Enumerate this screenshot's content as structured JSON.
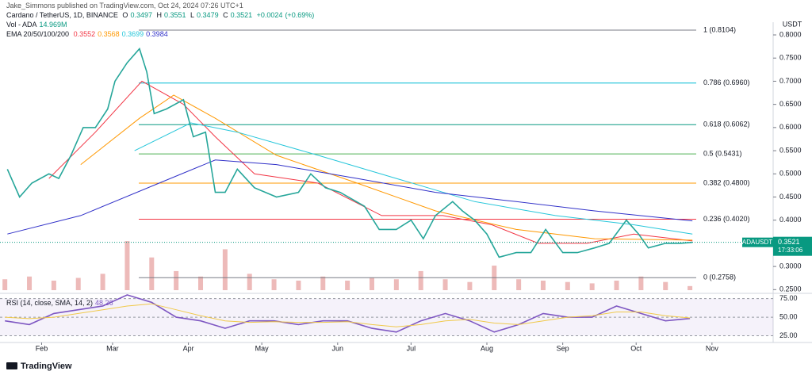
{
  "header": {
    "publisher": "Jake_Simmons published on TradingView.com, Oct 24, 2024 07:26 UTC+1",
    "symbol": "Cardano / TetherUS, 1D, BINANCE",
    "ohlc": [
      {
        "label": "O",
        "value": 0.3497
      },
      {
        "label": "H",
        "value": 0.3551
      },
      {
        "label": "L",
        "value": 0.3479
      },
      {
        "label": "C",
        "value": 0.3521
      }
    ],
    "change": {
      "value": 0.0024,
      "label": "+0.0024"
    },
    "change_pct": {
      "value": 0.69,
      "label": "(+0.69%)"
    },
    "volume": {
      "label": "Vol - ADA",
      "value": {
        "value": 14.969,
        "label": "14.969M"
      }
    },
    "ema": {
      "label": "EMA 20/50/100/200",
      "values": [
        0.3552,
        0.3568,
        0.3699,
        0.3984
      ]
    },
    "rsi": {
      "label": "RSI (14, close, SMA, 14, 2)",
      "value": 48.26
    },
    "currency": "USDT",
    "last_price": {
      "symbol": "ADAUSDT",
      "value": 0.3521,
      "countdown": "17:33:06"
    },
    "brand": "TradingView"
  },
  "chart_data": [
    {
      "type": "line",
      "xlim": [
        -17,
        299
      ],
      "ylim": [
        0.242,
        0.824
      ],
      "xticks": [
        {
          "value": 0,
          "label": "Feb"
        },
        {
          "value": 29,
          "label": "Mar"
        },
        {
          "value": 60,
          "label": "Apr"
        },
        {
          "value": 90,
          "label": "May"
        },
        {
          "value": 121,
          "label": "Jun"
        },
        {
          "value": 151,
          "label": "Jul"
        },
        {
          "value": 182,
          "label": "Aug"
        },
        {
          "value": 213,
          "label": "Sep"
        },
        {
          "value": 243,
          "label": "Oct"
        },
        {
          "value": 274,
          "label": "Nov"
        }
      ],
      "yticks": [
        {
          "value": 0.25,
          "label": "0.2500"
        },
        {
          "value": 0.3,
          "label": "0.3000"
        },
        {
          "value": 0.35,
          "label": "0.3500"
        },
        {
          "value": 0.4,
          "label": "0.4000"
        },
        {
          "value": 0.45,
          "label": "0.4500"
        },
        {
          "value": 0.5,
          "label": "0.5000"
        },
        {
          "value": 0.55,
          "label": "0.5500"
        },
        {
          "value": 0.6,
          "label": "0.6000"
        },
        {
          "value": 0.65,
          "label": "0.6500"
        },
        {
          "value": 0.7,
          "label": "0.7000"
        },
        {
          "value": 0.75,
          "label": "0.7500"
        },
        {
          "value": 0.8,
          "label": "0.8000"
        }
      ],
      "series": [
        {
          "color": "#26a69a",
          "x": [
            -14,
            -9,
            -4,
            3,
            7,
            12,
            17,
            22,
            27,
            30,
            35,
            40,
            43,
            46,
            51,
            58,
            62,
            67,
            71,
            75,
            80,
            87,
            96,
            105,
            110,
            116,
            122,
            132,
            138,
            145,
            151,
            156,
            161,
            168,
            172,
            177,
            182,
            187,
            194,
            200,
            206,
            213,
            219,
            226,
            232,
            239,
            244,
            248,
            255,
            261,
            266
          ],
          "values": [
            0.51,
            0.45,
            0.48,
            0.5,
            0.49,
            0.54,
            0.6,
            0.6,
            0.64,
            0.7,
            0.74,
            0.77,
            0.72,
            0.63,
            0.64,
            0.66,
            0.58,
            0.59,
            0.46,
            0.46,
            0.51,
            0.47,
            0.45,
            0.46,
            0.5,
            0.47,
            0.46,
            0.43,
            0.38,
            0.38,
            0.4,
            0.36,
            0.41,
            0.44,
            0.42,
            0.4,
            0.37,
            0.32,
            0.33,
            0.33,
            0.38,
            0.33,
            0.33,
            0.34,
            0.35,
            0.4,
            0.37,
            0.34,
            0.35,
            0.35,
            0.3521
          ]
        },
        {
          "color": "#f23645",
          "x": [
            3,
            22,
            41,
            58,
            71,
            87,
            113,
            139,
            164,
            184,
            203,
            223,
            242,
            266
          ],
          "values": [
            0.49,
            0.59,
            0.7,
            0.65,
            0.58,
            0.5,
            0.48,
            0.41,
            0.41,
            0.39,
            0.35,
            0.35,
            0.37,
            0.3552
          ]
        },
        {
          "color": "#ff9800",
          "x": [
            16,
            40,
            54,
            71,
            96,
            129,
            161,
            194,
            226,
            266
          ],
          "values": [
            0.52,
            0.62,
            0.67,
            0.62,
            0.54,
            0.48,
            0.42,
            0.38,
            0.36,
            0.3568
          ]
        },
        {
          "color": "#26c6da",
          "x": [
            38,
            61,
            80,
            113,
            145,
            177,
            210,
            242,
            266
          ],
          "values": [
            0.55,
            0.61,
            0.59,
            0.54,
            0.49,
            0.44,
            0.41,
            0.39,
            0.3699
          ]
        },
        {
          "color": "#3030c8",
          "x": [
            -14,
            16,
            48,
            71,
            96,
            129,
            161,
            194,
            226,
            266
          ],
          "values": [
            0.37,
            0.41,
            0.48,
            0.53,
            0.52,
            0.49,
            0.46,
            0.44,
            0.42,
            0.3984
          ]
        }
      ],
      "fib_levels": [
        {
          "label": "1 (0.8104)",
          "value": 0.8104,
          "color": "#787b86"
        },
        {
          "label": "0.786 (0.6960)",
          "value": 0.696,
          "color": "#00bcd4"
        },
        {
          "label": "0.618 (0.6062)",
          "value": 0.6062,
          "color": "#089981"
        },
        {
          "label": "0.5 (0.5431)",
          "value": 0.5431,
          "color": "#4caf50"
        },
        {
          "label": "0.382 (0.4800)",
          "value": 0.48,
          "color": "#ff9800"
        },
        {
          "label": "0.236 (0.4020)",
          "value": 0.402,
          "color": "#f23645"
        },
        {
          "label": "0 (0.2758)",
          "value": 0.2758,
          "color": "#787b86"
        }
      ]
    },
    {
      "type": "bar",
      "xlim": [
        -17,
        299
      ],
      "ylim": [
        0,
        250
      ],
      "color": "#e8a9a7",
      "x": [
        -15,
        -5,
        5,
        15,
        25,
        35,
        45,
        55,
        65,
        75,
        85,
        95,
        105,
        115,
        125,
        135,
        145,
        155,
        165,
        175,
        185,
        195,
        205,
        215,
        225,
        235,
        245,
        255,
        265
      ],
      "values": [
        40,
        50,
        35,
        45,
        60,
        180,
        120,
        70,
        50,
        150,
        60,
        40,
        35,
        50,
        35,
        45,
        40,
        70,
        40,
        30,
        90,
        40,
        35,
        30,
        25,
        35,
        50,
        30,
        14.969
      ]
    },
    {
      "type": "line",
      "xlim": [
        -17,
        299
      ],
      "ylim": [
        18,
        80
      ],
      "yticks": [
        {
          "value": 25,
          "label": "25.00"
        },
        {
          "value": 50,
          "label": "50.00"
        },
        {
          "value": 75,
          "label": "75.00"
        }
      ],
      "series": [
        {
          "color": "#7e57c2",
          "x": [
            -15,
            -5,
            5,
            15,
            25,
            35,
            45,
            55,
            65,
            75,
            85,
            95,
            105,
            115,
            125,
            135,
            145,
            155,
            165,
            175,
            185,
            195,
            205,
            215,
            225,
            235,
            245,
            255,
            265
          ],
          "values": [
            45,
            40,
            55,
            60,
            65,
            80,
            70,
            50,
            45,
            35,
            45,
            45,
            40,
            45,
            45,
            35,
            30,
            45,
            55,
            45,
            30,
            40,
            55,
            50,
            50,
            65,
            55,
            45,
            48.26
          ]
        },
        {
          "color": "#f0c94a",
          "x": [
            -15,
            -5,
            5,
            15,
            25,
            35,
            45,
            55,
            65,
            75,
            85,
            95,
            105,
            115,
            125,
            135,
            145,
            155,
            165,
            175,
            185,
            195,
            205,
            215,
            225,
            235,
            245,
            255,
            265
          ],
          "values": [
            50,
            48,
            50,
            55,
            60,
            65,
            68,
            60,
            52,
            45,
            43,
            44,
            43,
            43,
            44,
            40,
            37,
            40,
            45,
            47,
            42,
            40,
            45,
            50,
            52,
            57,
            57,
            52,
            49
          ]
        }
      ]
    }
  ]
}
